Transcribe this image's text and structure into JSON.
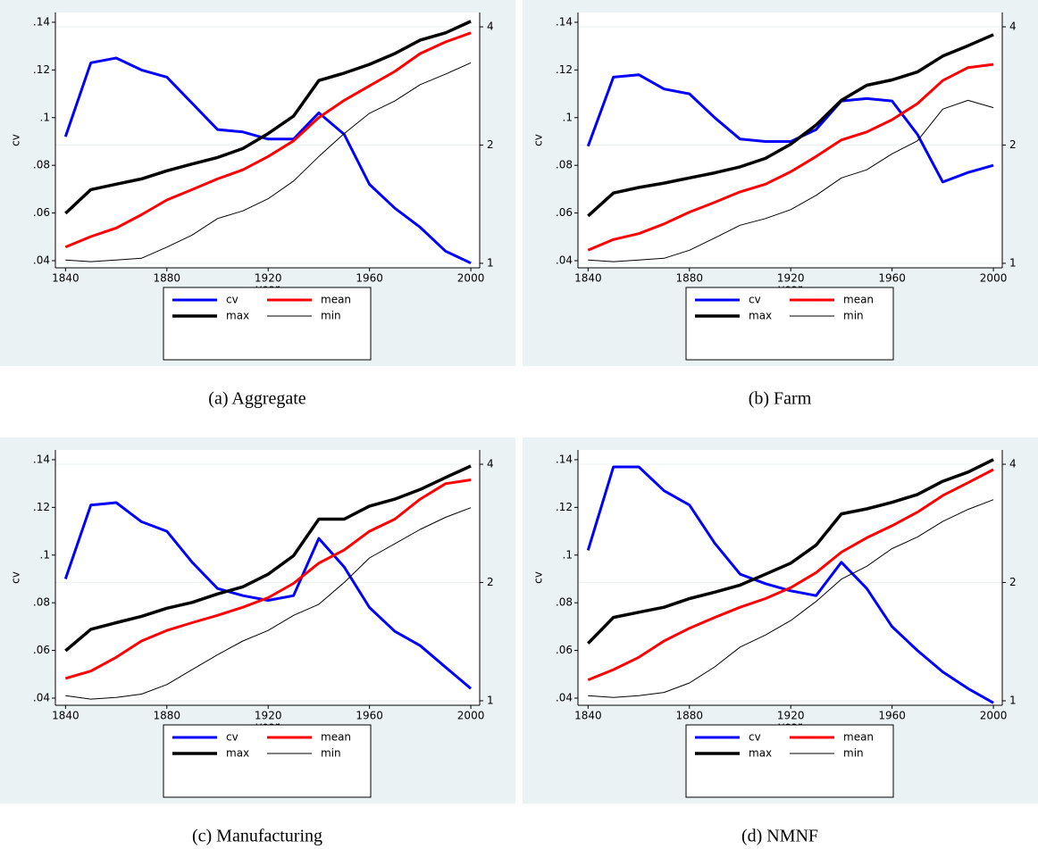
{
  "chart_data": [
    {
      "type": "line",
      "caption": "(a) Aggregate",
      "xlabel": "year",
      "ylabel": "cv",
      "x": [
        1840,
        1850,
        1860,
        1870,
        1880,
        1890,
        1900,
        1910,
        1920,
        1930,
        1940,
        1950,
        1960,
        1970,
        1980,
        1990,
        2000
      ],
      "xlim": [
        1836,
        2003.5
      ],
      "xticks": [
        1840,
        1880,
        1920,
        1960,
        2000
      ],
      "ylim": [
        0.037,
        0.1441
      ],
      "yticks": [
        {
          "value": 0.04,
          "label": ".04"
        },
        {
          "value": 0.06,
          "label": ".06"
        },
        {
          "value": 0.08,
          "label": ".08"
        },
        {
          "value": 0.1,
          "label": ".1"
        },
        {
          "value": 0.12,
          "label": ".12"
        },
        {
          "value": 0.14,
          "label": ".14"
        }
      ],
      "y2lim": [
        0.974,
        4.35
      ],
      "y2ticks": [
        1,
        2,
        4
      ],
      "y2scale": "log",
      "grid": "y2",
      "series": [
        {
          "name": "cv",
          "color": "#0000ff",
          "width": 3,
          "values": [
            0.092,
            0.123,
            0.125,
            0.12,
            0.117,
            0.106,
            0.095,
            0.094,
            0.091,
            0.091,
            0.102,
            0.093,
            0.072,
            0.062,
            0.054,
            0.044,
            0.039
          ]
        },
        {
          "name": "mean",
          "color": "#ff0000",
          "width": 3,
          "axis": "y2",
          "values": [
            1.1,
            1.17,
            1.23,
            1.33,
            1.45,
            1.54,
            1.64,
            1.73,
            1.87,
            2.05,
            2.35,
            2.6,
            2.83,
            3.08,
            3.42,
            3.66,
            3.86
          ]
        },
        {
          "name": "max",
          "color": "#000000",
          "width": 3.5,
          "axis": "y2",
          "values": [
            1.34,
            1.54,
            1.59,
            1.64,
            1.72,
            1.79,
            1.86,
            1.96,
            2.14,
            2.37,
            2.92,
            3.05,
            3.21,
            3.42,
            3.7,
            3.86,
            4.13
          ]
        },
        {
          "name": "min",
          "color": "#000000",
          "width": 1,
          "axis": "y2",
          "values": [
            1.02,
            1.01,
            1.02,
            1.03,
            1.1,
            1.18,
            1.3,
            1.36,
            1.46,
            1.62,
            1.87,
            2.14,
            2.41,
            2.59,
            2.85,
            3.03,
            3.24
          ]
        }
      ]
    },
    {
      "type": "line",
      "caption": "(b) Farm",
      "xlabel": "year",
      "ylabel": "cv",
      "x": [
        1840,
        1850,
        1860,
        1870,
        1880,
        1890,
        1900,
        1910,
        1920,
        1930,
        1940,
        1950,
        1960,
        1970,
        1980,
        1990,
        2000
      ],
      "xlim": [
        1836,
        2003.5
      ],
      "xticks": [
        1840,
        1880,
        1920,
        1960,
        2000
      ],
      "ylim": [
        0.037,
        0.1441
      ],
      "yticks": [
        {
          "value": 0.04,
          "label": ".04"
        },
        {
          "value": 0.06,
          "label": ".06"
        },
        {
          "value": 0.08,
          "label": ".08"
        },
        {
          "value": 0.1,
          "label": ".1"
        },
        {
          "value": 0.12,
          "label": ".12"
        },
        {
          "value": 0.14,
          "label": ".14"
        }
      ],
      "y2lim": [
        0.974,
        4.35
      ],
      "y2ticks": [
        1,
        2,
        4
      ],
      "y2scale": "log",
      "grid": "y2",
      "series": [
        {
          "name": "cv",
          "color": "#0000ff",
          "width": 3,
          "values": [
            0.088,
            0.117,
            0.118,
            0.112,
            0.11,
            0.1,
            0.091,
            0.09,
            0.09,
            0.095,
            0.107,
            0.108,
            0.107,
            0.093,
            0.073,
            0.077,
            0.08
          ]
        },
        {
          "name": "mean",
          "color": "#ff0000",
          "width": 3,
          "axis": "y2",
          "values": [
            1.08,
            1.15,
            1.19,
            1.26,
            1.35,
            1.43,
            1.52,
            1.59,
            1.71,
            1.87,
            2.06,
            2.16,
            2.32,
            2.55,
            2.92,
            3.15,
            3.21
          ]
        },
        {
          "name": "max",
          "color": "#000000",
          "width": 3.5,
          "axis": "y2",
          "values": [
            1.32,
            1.51,
            1.56,
            1.6,
            1.65,
            1.7,
            1.76,
            1.85,
            2.01,
            2.25,
            2.6,
            2.84,
            2.93,
            3.07,
            3.37,
            3.58,
            3.82
          ]
        },
        {
          "name": "min",
          "color": "#000000",
          "width": 1,
          "axis": "y2",
          "values": [
            1.02,
            1.01,
            1.02,
            1.03,
            1.08,
            1.16,
            1.25,
            1.3,
            1.37,
            1.49,
            1.65,
            1.73,
            1.9,
            2.05,
            2.47,
            2.6,
            2.49
          ]
        }
      ]
    },
    {
      "type": "line",
      "caption": "(c) Manufacturing",
      "xlabel": "year",
      "ylabel": "cv",
      "x": [
        1840,
        1850,
        1860,
        1870,
        1880,
        1890,
        1900,
        1910,
        1920,
        1930,
        1940,
        1950,
        1960,
        1970,
        1980,
        1990,
        2000
      ],
      "xlim": [
        1836,
        2003.5
      ],
      "xticks": [
        1840,
        1880,
        1920,
        1960,
        2000
      ],
      "ylim": [
        0.037,
        0.1441
      ],
      "yticks": [
        {
          "value": 0.04,
          "label": ".04"
        },
        {
          "value": 0.06,
          "label": ".06"
        },
        {
          "value": 0.08,
          "label": ".08"
        },
        {
          "value": 0.1,
          "label": ".1"
        },
        {
          "value": 0.12,
          "label": ".12"
        },
        {
          "value": 0.14,
          "label": ".14"
        }
      ],
      "y2lim": [
        0.974,
        4.35
      ],
      "y2ticks": [
        1,
        2,
        4
      ],
      "y2scale": "log",
      "grid": "y2",
      "series": [
        {
          "name": "cv",
          "color": "#0000ff",
          "width": 3,
          "values": [
            0.09,
            0.121,
            0.122,
            0.114,
            0.11,
            0.097,
            0.086,
            0.083,
            0.081,
            0.083,
            0.107,
            0.095,
            0.078,
            0.068,
            0.062,
            0.053,
            0.044
          ]
        },
        {
          "name": "mean",
          "color": "#ff0000",
          "width": 3,
          "axis": "y2",
          "values": [
            1.14,
            1.19,
            1.29,
            1.42,
            1.51,
            1.58,
            1.65,
            1.73,
            1.83,
            1.99,
            2.24,
            2.42,
            2.7,
            2.9,
            3.26,
            3.57,
            3.65
          ]
        },
        {
          "name": "max",
          "color": "#000000",
          "width": 3.5,
          "axis": "y2",
          "values": [
            1.34,
            1.52,
            1.58,
            1.64,
            1.72,
            1.78,
            1.87,
            1.95,
            2.1,
            2.34,
            2.9,
            2.9,
            3.13,
            3.26,
            3.45,
            3.7,
            3.96
          ]
        },
        {
          "name": "min",
          "color": "#000000",
          "width": 1,
          "axis": "y2",
          "values": [
            1.03,
            1.01,
            1.02,
            1.04,
            1.1,
            1.2,
            1.31,
            1.42,
            1.51,
            1.65,
            1.76,
            2.0,
            2.31,
            2.51,
            2.73,
            2.93,
            3.1
          ]
        }
      ]
    },
    {
      "type": "line",
      "caption": "(d) NMNF",
      "xlabel": "year",
      "ylabel": "cv",
      "x": [
        1840,
        1850,
        1860,
        1870,
        1880,
        1890,
        1900,
        1910,
        1920,
        1930,
        1940,
        1950,
        1960,
        1970,
        1980,
        1990,
        2000
      ],
      "xlim": [
        1836,
        2003.5
      ],
      "xticks": [
        1840,
        1880,
        1920,
        1960,
        2000
      ],
      "ylim": [
        0.037,
        0.1441
      ],
      "yticks": [
        {
          "value": 0.04,
          "label": ".04"
        },
        {
          "value": 0.06,
          "label": ".06"
        },
        {
          "value": 0.08,
          "label": ".08"
        },
        {
          "value": 0.1,
          "label": ".1"
        },
        {
          "value": 0.12,
          "label": ".12"
        },
        {
          "value": 0.14,
          "label": ".14"
        }
      ],
      "y2lim": [
        0.974,
        4.35
      ],
      "y2ticks": [
        1,
        2,
        4
      ],
      "y2scale": "log",
      "grid": "y2",
      "series": [
        {
          "name": "cv",
          "color": "#0000ff",
          "width": 3,
          "values": [
            0.102,
            0.137,
            0.137,
            0.127,
            0.121,
            0.105,
            0.092,
            0.088,
            0.085,
            0.083,
            0.097,
            0.086,
            0.07,
            0.06,
            0.051,
            0.044,
            0.038
          ]
        },
        {
          "name": "mean",
          "color": "#ff0000",
          "width": 3,
          "axis": "y2",
          "values": [
            1.13,
            1.2,
            1.29,
            1.42,
            1.53,
            1.63,
            1.73,
            1.82,
            1.94,
            2.12,
            2.39,
            2.6,
            2.79,
            3.02,
            3.33,
            3.59,
            3.88
          ]
        },
        {
          "name": "max",
          "color": "#000000",
          "width": 3.5,
          "axis": "y2",
          "values": [
            1.4,
            1.63,
            1.68,
            1.73,
            1.82,
            1.89,
            1.97,
            2.1,
            2.24,
            2.49,
            2.99,
            3.08,
            3.2,
            3.35,
            3.62,
            3.82,
            4.11
          ]
        },
        {
          "name": "min",
          "color": "#000000",
          "width": 1,
          "axis": "y2",
          "values": [
            1.03,
            1.02,
            1.03,
            1.05,
            1.11,
            1.22,
            1.37,
            1.47,
            1.6,
            1.79,
            2.04,
            2.2,
            2.44,
            2.61,
            2.86,
            3.07,
            3.25
          ]
        }
      ]
    }
  ]
}
